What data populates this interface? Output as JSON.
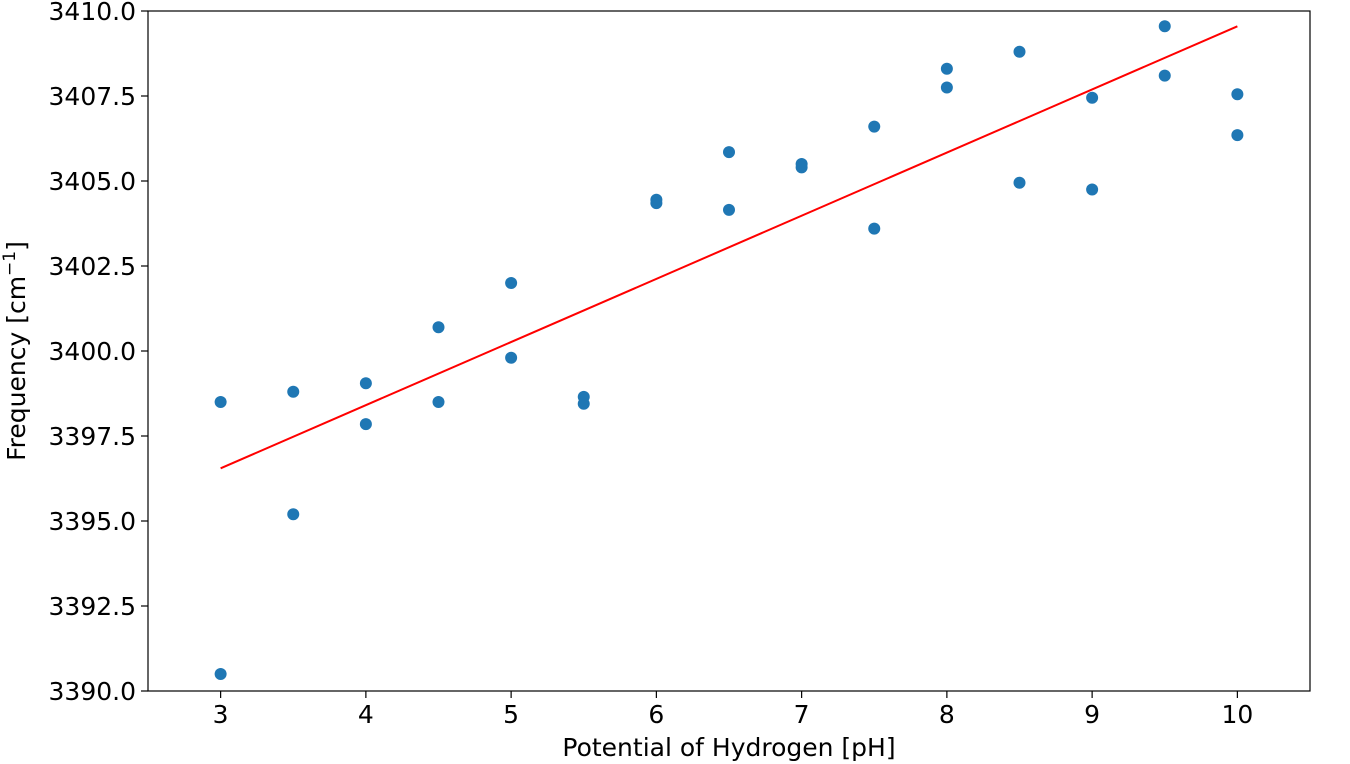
{
  "chart_data": {
    "type": "scatter",
    "xlabel": "Potential of Hydrogen [pH]",
    "ylabel_main": "Frequency [cm",
    "ylabel_sup": "−1",
    "ylabel_close": "]",
    "xlim": [
      2.5,
      10.5
    ],
    "ylim": [
      3390.0,
      3410.0
    ],
    "x_ticks": [
      3,
      4,
      5,
      6,
      7,
      8,
      9,
      10
    ],
    "x_tick_labels": [
      "3",
      "4",
      "5",
      "6",
      "7",
      "8",
      "9",
      "10"
    ],
    "y_ticks": [
      3390.0,
      3392.5,
      3395.0,
      3397.5,
      3400.0,
      3402.5,
      3405.0,
      3407.5,
      3410.0
    ],
    "y_tick_labels": [
      "3390.0",
      "3392.5",
      "3395.0",
      "3397.5",
      "3400.0",
      "3402.5",
      "3405.0",
      "3407.5",
      "3410.0"
    ],
    "grid": false,
    "series": [
      {
        "type": "scatter",
        "color": "#1f77b4",
        "points": [
          {
            "x": 3.0,
            "y": 3398.5
          },
          {
            "x": 3.0,
            "y": 3390.5
          },
          {
            "x": 3.5,
            "y": 3398.8
          },
          {
            "x": 3.5,
            "y": 3395.2
          },
          {
            "x": 4.0,
            "y": 3399.05
          },
          {
            "x": 4.0,
            "y": 3397.85
          },
          {
            "x": 4.5,
            "y": 3400.7
          },
          {
            "x": 4.5,
            "y": 3398.5
          },
          {
            "x": 5.0,
            "y": 3402.0
          },
          {
            "x": 5.0,
            "y": 3399.8
          },
          {
            "x": 5.5,
            "y": 3398.65
          },
          {
            "x": 5.5,
            "y": 3398.45
          },
          {
            "x": 6.0,
            "y": 3404.45
          },
          {
            "x": 6.0,
            "y": 3404.35
          },
          {
            "x": 6.5,
            "y": 3405.85
          },
          {
            "x": 6.5,
            "y": 3404.15
          },
          {
            "x": 7.0,
            "y": 3405.5
          },
          {
            "x": 7.0,
            "y": 3405.4
          },
          {
            "x": 7.5,
            "y": 3406.6
          },
          {
            "x": 7.5,
            "y": 3403.6
          },
          {
            "x": 8.0,
            "y": 3408.3
          },
          {
            "x": 8.0,
            "y": 3407.75
          },
          {
            "x": 8.5,
            "y": 3408.8
          },
          {
            "x": 8.5,
            "y": 3404.95
          },
          {
            "x": 9.0,
            "y": 3407.45
          },
          {
            "x": 9.0,
            "y": 3404.75
          },
          {
            "x": 9.5,
            "y": 3409.55
          },
          {
            "x": 9.5,
            "y": 3408.1
          },
          {
            "x": 10.0,
            "y": 3407.55
          },
          {
            "x": 10.0,
            "y": 3406.35
          }
        ]
      },
      {
        "type": "line",
        "color": "#ff0000",
        "points": [
          {
            "x": 3.0,
            "y": 3396.55
          },
          {
            "x": 10.0,
            "y": 3409.55
          }
        ]
      }
    ]
  }
}
